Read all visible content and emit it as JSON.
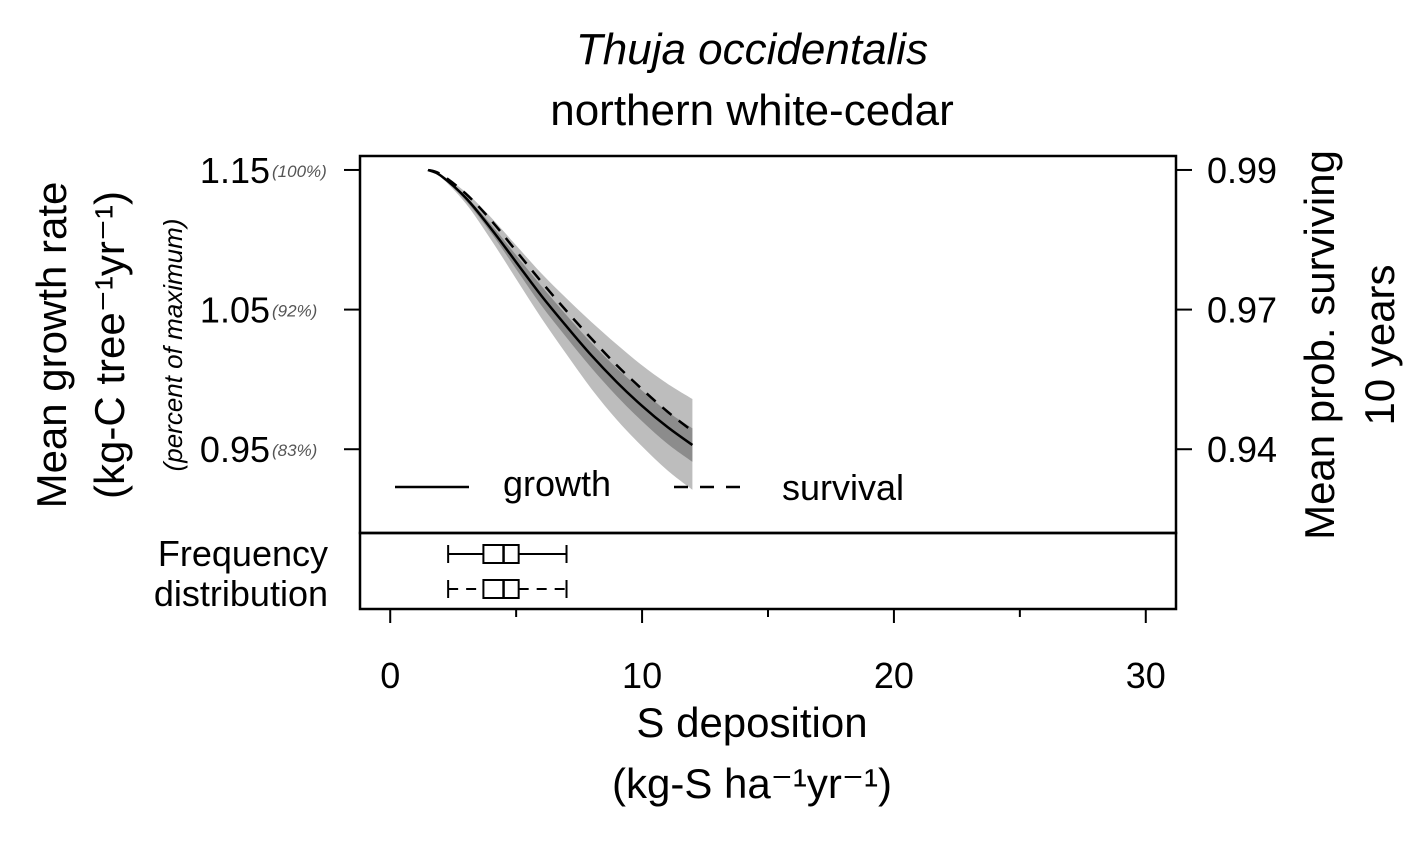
{
  "chart_data": {
    "type": "line",
    "title": "Thuja occidentalis",
    "subtitle": "northern white-cedar",
    "xlabel": "S deposition",
    "xlabel_units": "(kg-S ha⁻¹yr⁻¹)",
    "ylabel_left": "Mean growth rate",
    "ylabel_left_units": "(kg-C tree⁻¹yr⁻¹)",
    "ylabel_left_note": "(percent of maximum)",
    "ylabel_right": "Mean prob. surviving",
    "ylabel_right_units": "10 years",
    "xlim": [
      -1.2,
      31.2
    ],
    "ylim_growth": [
      0.89,
      1.16
    ],
    "x_ticks": [
      0,
      10,
      20,
      30
    ],
    "x_minor_ticks": [
      5,
      15,
      25
    ],
    "y_left_ticks": [
      {
        "value": 1.15,
        "label": "1.15",
        "pct": "(100%)"
      },
      {
        "value": 1.05,
        "label": "1.05",
        "pct": "(92%)"
      },
      {
        "value": 0.95,
        "label": "0.95",
        "pct": "(83%)"
      }
    ],
    "y_right_ticks": [
      {
        "label": "0.99",
        "growth_equiv": 1.15
      },
      {
        "label": "0.97",
        "growth_equiv": 1.05
      },
      {
        "label": "0.94",
        "growth_equiv": 0.95
      }
    ],
    "series": [
      {
        "name": "growth",
        "style": "solid",
        "x": [
          1.5,
          2,
          3,
          4,
          5,
          6,
          7,
          8,
          9,
          10,
          11,
          12
        ],
        "y": [
          1.15,
          1.146,
          1.13,
          1.108,
          1.084,
          1.06,
          1.038,
          1.017,
          0.998,
          0.981,
          0.966,
          0.953
        ],
        "ci_outer_upper": [
          1.15,
          1.147,
          1.134,
          1.116,
          1.096,
          1.076,
          1.058,
          1.041,
          1.025,
          1.01,
          0.997,
          0.986
        ],
        "ci_outer_lower": [
          1.15,
          1.145,
          1.126,
          1.1,
          1.072,
          1.044,
          1.018,
          0.993,
          0.971,
          0.952,
          0.935,
          0.921
        ],
        "ci_inner_upper": [
          1.15,
          1.146,
          1.131,
          1.111,
          1.089,
          1.067,
          1.046,
          1.026,
          1.008,
          0.992,
          0.977,
          0.965
        ],
        "ci_inner_lower": [
          1.15,
          1.146,
          1.128,
          1.105,
          1.079,
          1.053,
          1.03,
          1.008,
          0.988,
          0.97,
          0.954,
          0.941
        ]
      },
      {
        "name": "survival",
        "style": "dashed",
        "x": [
          1.5,
          2,
          3,
          4,
          5,
          6,
          7,
          8,
          9,
          10,
          11,
          12
        ],
        "y": [
          1.15,
          1.147,
          1.133,
          1.114,
          1.092,
          1.07,
          1.049,
          1.029,
          1.01,
          0.993,
          0.977,
          0.963
        ]
      }
    ],
    "frequency_distribution": {
      "label_line1": "Frequency",
      "label_line2": "distribution",
      "boxplots": [
        {
          "series": "growth",
          "whisker_style": "solid",
          "min": 2.3,
          "q1": 3.7,
          "median": 4.5,
          "q3": 5.1,
          "max": 7.0
        },
        {
          "series": "survival",
          "whisker_style": "dashed",
          "min": 2.3,
          "q1": 3.7,
          "median": 4.5,
          "q3": 5.1,
          "max": 7.0
        }
      ]
    },
    "legend": {
      "position": "bottom-left",
      "entries": [
        "growth",
        "survival"
      ]
    },
    "grid": false,
    "colors": {
      "ci_outer": "#bdbdbd",
      "ci_inner": "#8c8c8c",
      "line": "#000000"
    }
  }
}
